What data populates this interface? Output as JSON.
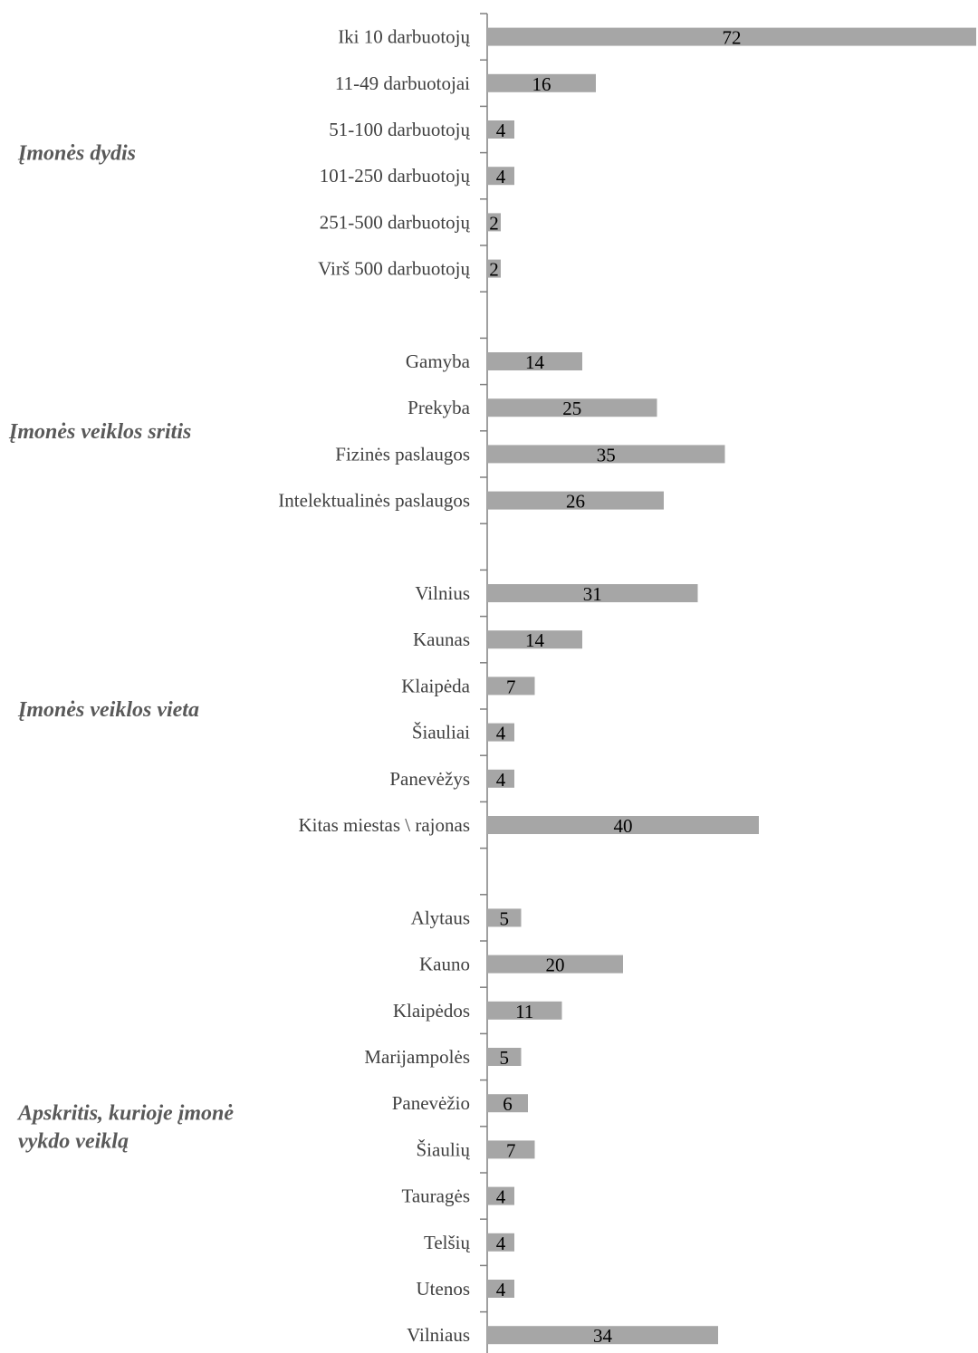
{
  "chart_data": {
    "type": "bar",
    "orientation": "horizontal",
    "bar_color": "#a6a6a6",
    "axis_color": "#808080",
    "groups": [
      {
        "label_lines": [
          "Įmonės dydis"
        ],
        "categories": [
          "Iki 10 darbuotojų",
          "11-49 darbuotojai",
          "51-100 darbuotojų",
          "101-250 darbuotojų",
          "251-500 darbuotojų",
          "Virš 500 darbuotojų"
        ],
        "values": [
          72,
          16,
          4,
          4,
          2,
          2
        ]
      },
      {
        "label_lines": [
          "Įmonės veiklos sritis"
        ],
        "categories": [
          "Gamyba",
          "Prekyba",
          "Fizinės paslaugos",
          "Intelektualinės paslaugos"
        ],
        "values": [
          14,
          25,
          35,
          26
        ]
      },
      {
        "label_lines": [
          "Įmonės veiklos vieta"
        ],
        "categories": [
          "Vilnius",
          "Kaunas",
          "Klaipėda",
          "Šiauliai",
          "Panevėžys",
          "Kitas miestas \\ rajonas"
        ],
        "values": [
          31,
          14,
          7,
          4,
          4,
          40
        ]
      },
      {
        "label_lines": [
          "Apskritis, kurioje įmonė",
          "vykdo veiklą"
        ],
        "categories": [
          "Alytaus",
          "Kauno",
          "Klaipėdos",
          "Marijampolės",
          "Panevėžio",
          "Šiaulių",
          "Tauragės",
          "Telšių",
          "Utenos",
          "Vilniaus"
        ],
        "values": [
          5,
          20,
          11,
          5,
          6,
          7,
          4,
          4,
          4,
          34
        ]
      }
    ]
  }
}
